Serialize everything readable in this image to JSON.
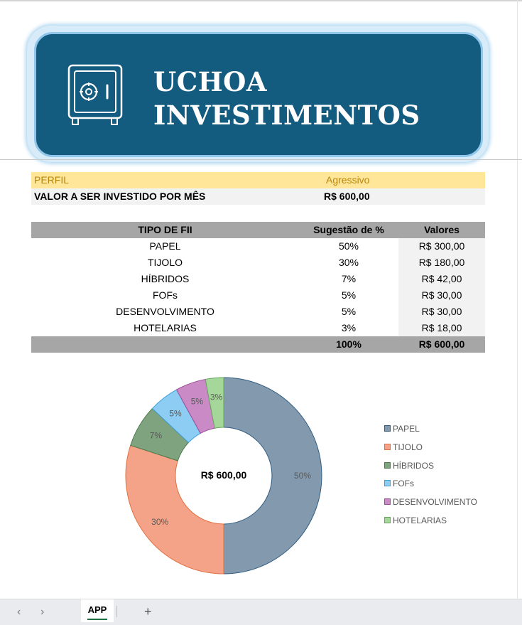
{
  "banner": {
    "title_line1": "UCHOA",
    "title_line2": "INVESTIMENTOS",
    "icon": "safe-icon",
    "background_color": "#145B80"
  },
  "profile": {
    "label": "PERFIL",
    "value": "Agressivo",
    "invest_label": "VALOR A SER INVESTIDO POR MÊS",
    "invest_value": "R$ 600,00"
  },
  "table": {
    "headers": [
      "TIPO DE FII",
      "Sugestão de %",
      "Valores"
    ],
    "rows": [
      {
        "type": "PAPEL",
        "pct": "50%",
        "value": "R$ 300,00"
      },
      {
        "type": "TIJOLO",
        "pct": "30%",
        "value": "R$ 180,00"
      },
      {
        "type": "HÍBRIDOS",
        "pct": "7%",
        "value": "R$ 42,00"
      },
      {
        "type": "FOFs",
        "pct": "5%",
        "value": "R$ 30,00"
      },
      {
        "type": "DESENVOLVIMENTO",
        "pct": "5%",
        "value": "R$ 30,00"
      },
      {
        "type": "HOTELARIAS",
        "pct": "3%",
        "value": "R$ 18,00"
      }
    ],
    "total": {
      "type": "",
      "pct": "100%",
      "value": "R$ 600,00"
    }
  },
  "chart_data": {
    "type": "pie",
    "donut": true,
    "center_label": "R$ 600,00",
    "categories": [
      "PAPEL",
      "TIJOLO",
      "HÍBRIDOS",
      "FOFs",
      "DESENVOLVIMENTO",
      "HOTELARIAS"
    ],
    "values": [
      50,
      30,
      7,
      5,
      5,
      3
    ],
    "data_labels": [
      "50%",
      "30%",
      "7%",
      "5%",
      "5%",
      "3%"
    ],
    "colors": [
      "#8399AD",
      "#F4A388",
      "#7FA27F",
      "#8ECDF3",
      "#C98AC5",
      "#A6D79A"
    ],
    "legend_position": "right"
  },
  "sheet_bar": {
    "prev_icon": "chevron-left-icon",
    "next_icon": "chevron-right-icon",
    "active_sheet": "APP",
    "add_icon": "plus-icon"
  }
}
